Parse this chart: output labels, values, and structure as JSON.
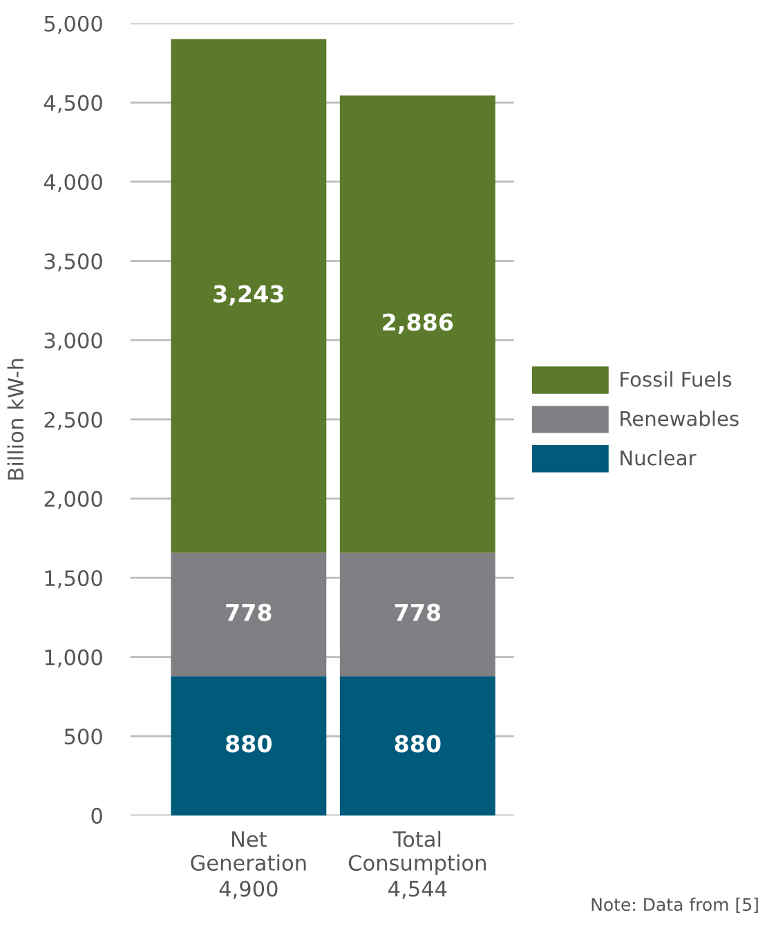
{
  "chart_data": {
    "type": "bar",
    "stacked": true,
    "ylabel": "Billion kW-h",
    "categories": [
      "Net Generation",
      "Total Consumption"
    ],
    "series": [
      {
        "name": "Nuclear",
        "color": "#005a7a",
        "values": [
          880,
          880
        ],
        "value_labels": [
          "880",
          "880"
        ]
      },
      {
        "name": "Renewables",
        "color": "#808084",
        "values": [
          778,
          778
        ],
        "value_labels": [
          "778",
          "778"
        ]
      },
      {
        "name": "Fossil Fuels",
        "color": "#5b7a2b",
        "values": [
          3243,
          2886
        ],
        "value_labels": [
          "3,243",
          "2,886"
        ]
      }
    ],
    "totals": [
      "4,900",
      "4,544"
    ],
    "ylim": [
      0,
      5000
    ],
    "yticks": [
      0,
      500,
      {
        "value": 1000,
        "label": "1,000"
      },
      {
        "value": 1500,
        "label": "1,500"
      },
      {
        "value": 2000,
        "label": "2,000"
      },
      {
        "value": 2500,
        "label": "2,500"
      },
      {
        "value": 3000,
        "label": "3,000"
      },
      {
        "value": 3500,
        "label": "3,500"
      },
      {
        "value": 4000,
        "label": "4,000"
      },
      {
        "value": 4500,
        "label": "4,500"
      },
      {
        "value": 5000,
        "label": "5,000"
      }
    ],
    "grid": "y",
    "legend": "right",
    "annotations": [
      "Note: Data from [5]"
    ]
  }
}
